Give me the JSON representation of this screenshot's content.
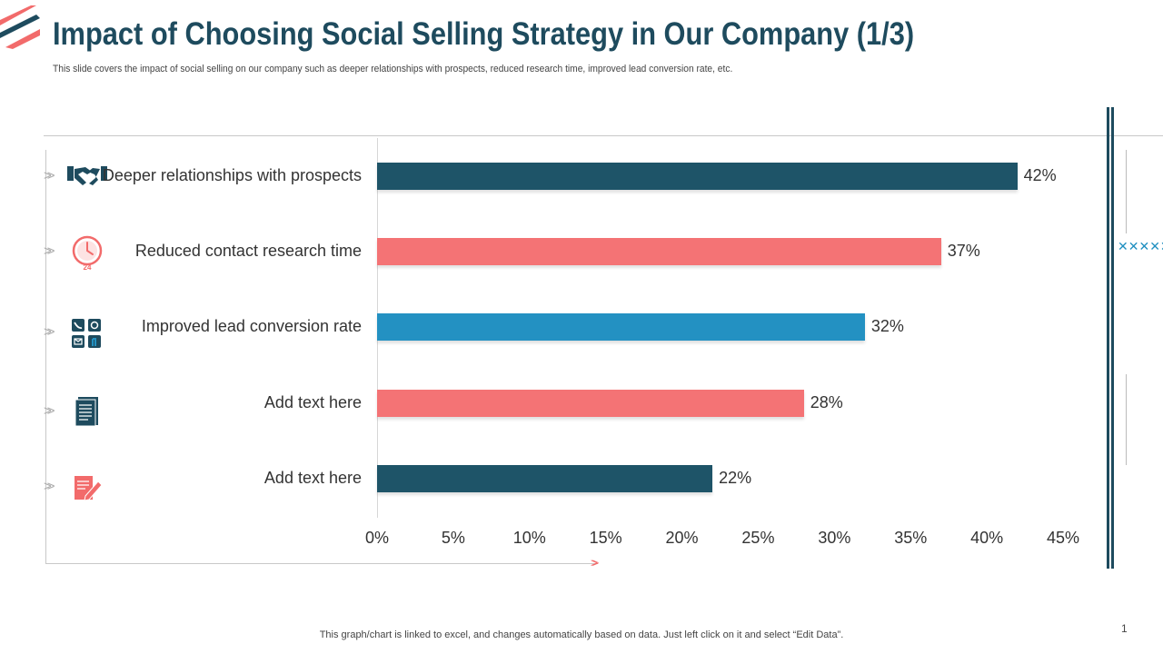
{
  "slide": {
    "title": "Impact of Choosing Social Selling Strategy in Our Company (1/3)",
    "subtitle": "This slide covers the impact of social selling on our company such as deeper relationships with prospects, reduced research time, improved lead conversion rate, etc.",
    "footnote": "This graph/chart is linked to excel,  and changes automatically based on data. Just left click on it and select “Edit Data”.",
    "page_number": "1",
    "decor_x_marks": "✕✕✕✕✕✕✕✕✕"
  },
  "colors": {
    "title": "#1e4b5e",
    "dark_teal": "#1e5468",
    "coral": "#f47375",
    "blue": "#2391c2",
    "accent_red": "#f26b6b"
  },
  "chart_data": {
    "type": "bar",
    "orientation": "horizontal",
    "categories": [
      "Deeper relationships with prospects",
      "Reduced contact research time",
      "Improved lead conversion rate",
      "Add text here",
      "Add text here"
    ],
    "values": [
      42,
      37,
      32,
      28,
      22
    ],
    "value_labels": [
      "42%",
      "37%",
      "32%",
      "28%",
      "22%"
    ],
    "bar_colors": [
      "#1e5468",
      "#f47375",
      "#2391c2",
      "#f47375",
      "#1e5468"
    ],
    "icons": [
      "handshake-icon",
      "clock-24-icon",
      "contact-channels-icon",
      "document-icon",
      "edit-document-icon"
    ],
    "xlim": [
      0,
      45
    ],
    "xticks": [
      0,
      5,
      10,
      15,
      20,
      25,
      30,
      35,
      40,
      45
    ],
    "xtick_labels": [
      "0%",
      "5%",
      "10%",
      "15%",
      "20%",
      "25%",
      "30%",
      "35%",
      "40%",
      "45%"
    ],
    "title": "",
    "xlabel": "",
    "ylabel": "",
    "grid": false,
    "legend": "none"
  }
}
